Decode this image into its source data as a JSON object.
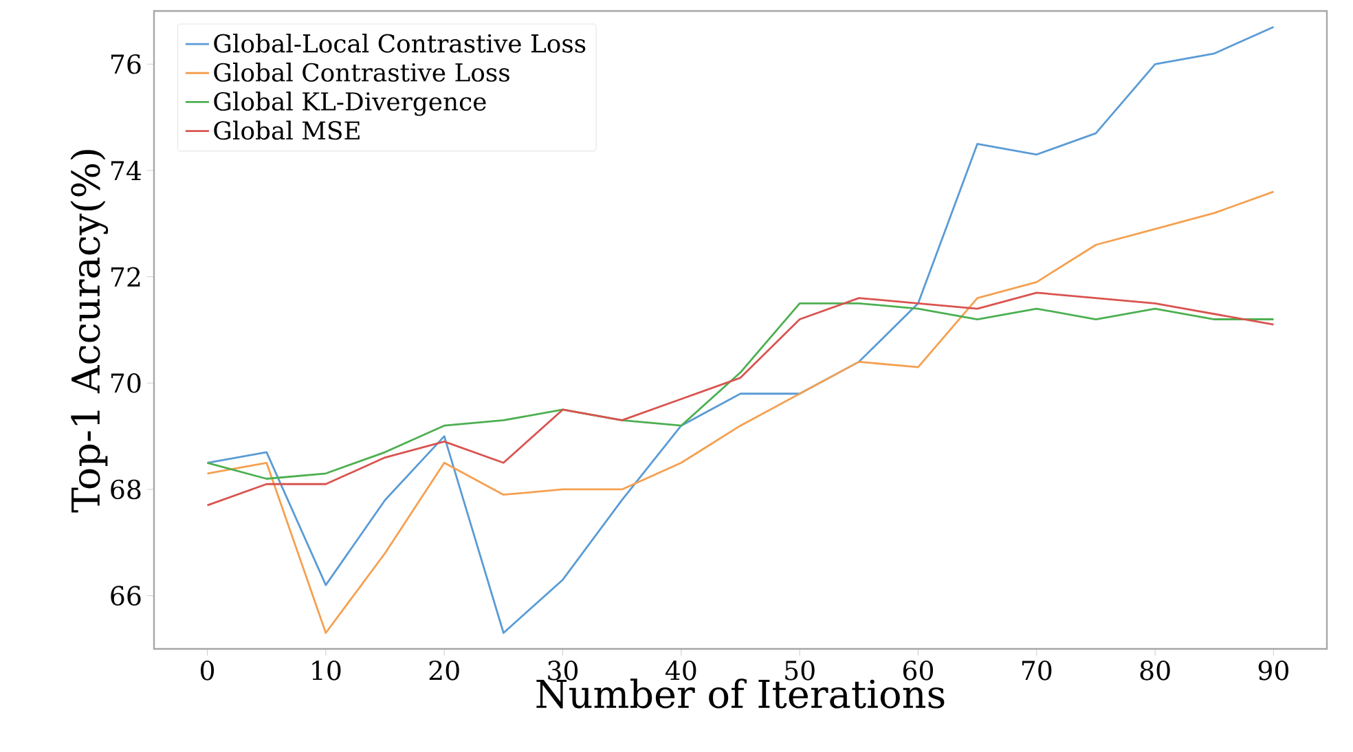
{
  "chart_data": {
    "type": "line",
    "xlabel": "Number of Iterations",
    "ylabel": "Top-1 Accuracy(%)",
    "x": [
      0,
      5,
      10,
      15,
      20,
      25,
      30,
      35,
      40,
      45,
      50,
      55,
      60,
      65,
      70,
      75,
      80,
      85,
      90
    ],
    "series": [
      {
        "name": "Global-Local Contrastive Loss",
        "color": "#5a9bd5",
        "values": [
          68.5,
          68.7,
          66.2,
          67.8,
          69.0,
          65.3,
          66.3,
          67.8,
          69.2,
          69.8,
          69.8,
          70.4,
          71.5,
          74.5,
          74.3,
          74.7,
          76.0,
          76.2,
          76.7
        ]
      },
      {
        "name": "Global Contrastive Loss",
        "color": "#f5a050",
        "values": [
          68.3,
          68.5,
          65.3,
          66.8,
          68.5,
          67.9,
          68.0,
          68.0,
          68.5,
          69.2,
          69.8,
          70.4,
          70.3,
          71.6,
          71.9,
          72.6,
          72.9,
          73.2,
          73.6
        ]
      },
      {
        "name": "Global KL-Divergence",
        "color": "#4caf50",
        "values": [
          68.5,
          68.2,
          68.3,
          68.7,
          69.2,
          69.3,
          69.5,
          69.3,
          69.2,
          70.2,
          71.5,
          71.5,
          71.4,
          71.2,
          71.4,
          71.2,
          71.4,
          71.2,
          71.2
        ]
      },
      {
        "name": "Global MSE",
        "color": "#d9534f",
        "values": [
          67.7,
          68.1,
          68.1,
          68.6,
          68.9,
          68.5,
          69.5,
          69.3,
          69.7,
          70.1,
          71.2,
          71.6,
          71.5,
          71.4,
          71.7,
          71.6,
          71.5,
          71.3,
          71.1
        ]
      }
    ],
    "xlim": [
      -4.5,
      94.5
    ],
    "ylim": [
      65.0,
      77.0
    ],
    "xticks": [
      0,
      10,
      20,
      30,
      40,
      50,
      60,
      70,
      80,
      90
    ],
    "yticks": [
      66,
      68,
      70,
      72,
      74,
      76
    ],
    "legend": "top left",
    "grid": false,
    "marker": "none",
    "line_style": "solid"
  }
}
